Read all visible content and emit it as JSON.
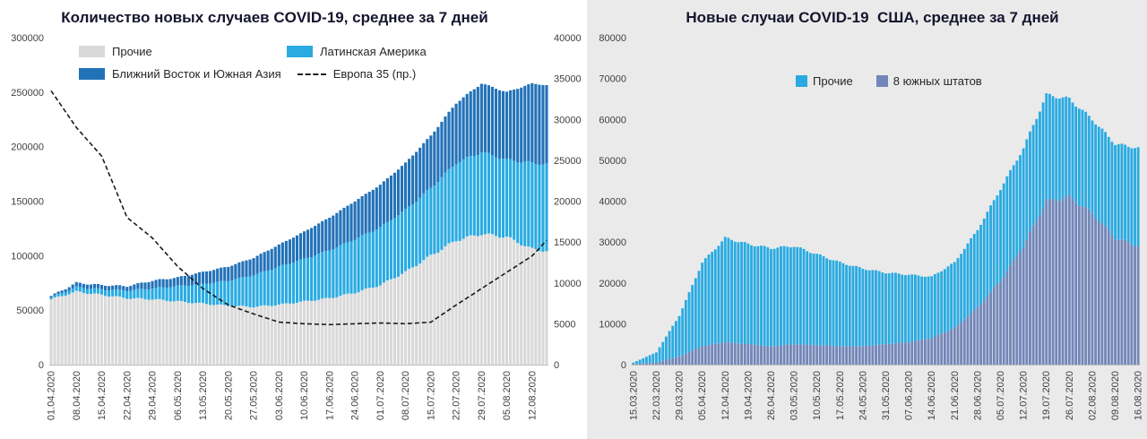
{
  "chart_data": [
    {
      "type": "bar",
      "subtype": "stacked-daily-bars-with-line",
      "title": "Количество новых случаев COVID-19, среднее за 7 дней",
      "legend_position": "top-inside",
      "grid": false,
      "total_days": 138,
      "x_tick_interval_days": 7,
      "x_tick_labels": [
        "01.04.2020",
        "08.04.2020",
        "15.04.2020",
        "22.04.2020",
        "29.04.2020",
        "06.05.2020",
        "13.05.2020",
        "20.05.2020",
        "27.05.2020",
        "03.06.2020",
        "10.06.2020",
        "17.06.2020",
        "24.06.2020",
        "01.07.2020",
        "08.07.2020",
        "15.07.2020",
        "22.07.2020",
        "29.07.2020",
        "05.08.2020",
        "12.08.2020"
      ],
      "y_left": {
        "min": 0,
        "max": 300000,
        "step": 50000
      },
      "y_right": {
        "min": 0,
        "max": 40000,
        "step": 5000
      },
      "series": [
        {
          "name": "Прочие",
          "kind": "bar",
          "axis": "left",
          "color": "#d9d9d9",
          "weekly_values": [
            60000,
            67000,
            64000,
            61000,
            60000,
            58000,
            56000,
            54000,
            53000,
            55000,
            58000,
            61000,
            66000,
            73000,
            85000,
            100000,
            114000,
            120000,
            117000,
            106000,
            103000
          ]
        },
        {
          "name": "Латинская Америка",
          "kind": "bar",
          "axis": "left",
          "color": "#29abe2",
          "weekly_values": [
            1500,
            4000,
            5000,
            7000,
            10000,
            14000,
            18000,
            23000,
            29000,
            35000,
            39000,
            44000,
            49000,
            53000,
            57000,
            62000,
            71000,
            75000,
            71000,
            79000,
            80000
          ]
        },
        {
          "name": "Ближний Восток и Южная Азия",
          "kind": "bar",
          "axis": "left",
          "color": "#2272b8",
          "weekly_values": [
            1500,
            4000,
            4000,
            4000,
            7000,
            8000,
            11000,
            13000,
            16000,
            20000,
            25000,
            30000,
            35000,
            39000,
            43000,
            48000,
            55000,
            63000,
            62000,
            73000,
            72000
          ]
        },
        {
          "name": "Европа 35 (пр.)",
          "kind": "line",
          "axis": "right",
          "color": "#1a1a1a",
          "dashed": true,
          "weekly_values": [
            33500,
            29000,
            25500,
            18000,
            15500,
            12000,
            9300,
            7300,
            6200,
            5200,
            5000,
            4900,
            5000,
            5100,
            5000,
            5200,
            7300,
            9300,
            11300,
            13300,
            16600
          ]
        }
      ]
    },
    {
      "type": "bar",
      "subtype": "stacked-daily-bars",
      "title": "Новые случаи COVID-19  США, среднее за 7 дней",
      "legend_position": "top-inside",
      "grid": false,
      "background": "#eaeaea",
      "total_days": 155,
      "x_tick_interval_days": 7,
      "x_tick_labels": [
        "15.03.2020",
        "22.03.2020",
        "29.03.2020",
        "05.04.2020",
        "12.04.2020",
        "19.04.2020",
        "26.04.2020",
        "03.05.2020",
        "10.05.2020",
        "17.05.2020",
        "24.05.2020",
        "31.05.2020",
        "07.06.2020",
        "14.06.2020",
        "21.06.2020",
        "28.06.2020",
        "05.07.2020",
        "12.07.2020",
        "19.07.2020",
        "26.07.2020",
        "02.08.2020",
        "09.08.2020",
        "16.08.2020"
      ],
      "y_left": {
        "min": 0,
        "max": 80000,
        "step": 10000
      },
      "series": [
        {
          "name": "8 южных штатов",
          "kind": "bar",
          "axis": "left",
          "color": "#7286b9",
          "weekly_values": [
            100,
            500,
            2000,
            4500,
            5500,
            5000,
            4500,
            5000,
            4800,
            4500,
            4500,
            5000,
            5500,
            6500,
            9000,
            14000,
            20500,
            29000,
            40000,
            41000,
            37000,
            31000,
            29000
          ]
        },
        {
          "name": "Прочие",
          "kind": "bar",
          "axis": "left",
          "color": "#29abe2",
          "weekly_values": [
            400,
            2500,
            10000,
            20500,
            25500,
            24500,
            24000,
            24000,
            22200,
            20500,
            19000,
            17500,
            16500,
            15000,
            16000,
            19000,
            22500,
            24000,
            26000,
            24000,
            23000,
            23000,
            24000
          ]
        }
      ]
    }
  ]
}
